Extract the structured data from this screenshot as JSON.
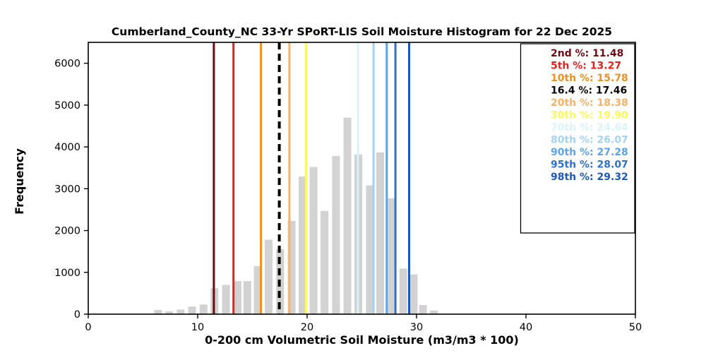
{
  "chart_data": {
    "type": "bar",
    "title": "Cumberland_County_NC 33-Yr SPoRT-LIS Soil Moisture Histogram for 22 Dec 2025",
    "xlabel": "0-200 cm Volumetric Soil Moisture (m3/m3 * 100)",
    "ylabel": "Frequency",
    "xlim": [
      0,
      50
    ],
    "ylim": [
      0,
      6500
    ],
    "xticks": [
      0,
      10,
      20,
      30,
      40,
      50
    ],
    "yticks": [
      0,
      1000,
      2000,
      3000,
      4000,
      5000,
      6000
    ],
    "grid": false,
    "bar_color": "#d2d2d2",
    "bin_width": 1.0,
    "bins": [
      {
        "x": 6.0,
        "freq": 100
      },
      {
        "x": 7.0,
        "freq": 70
      },
      {
        "x": 8.05,
        "freq": 110
      },
      {
        "x": 9.1,
        "freq": 180
      },
      {
        "x": 10.15,
        "freq": 230
      },
      {
        "x": 11.15,
        "freq": 620
      },
      {
        "x": 12.2,
        "freq": 700
      },
      {
        "x": 13.25,
        "freq": 790
      },
      {
        "x": 14.15,
        "freq": 790
      },
      {
        "x": 15.1,
        "freq": 1150
      },
      {
        "x": 16.1,
        "freq": 1780
      },
      {
        "x": 17.15,
        "freq": 1560
      },
      {
        "x": 18.2,
        "freq": 2230
      },
      {
        "x": 19.2,
        "freq": 3290
      },
      {
        "x": 20.2,
        "freq": 3520
      },
      {
        "x": 21.2,
        "freq": 2470
      },
      {
        "x": 22.25,
        "freq": 3780
      },
      {
        "x": 23.3,
        "freq": 4700
      },
      {
        "x": 24.3,
        "freq": 3820
      },
      {
        "x": 25.35,
        "freq": 3080
      },
      {
        "x": 26.3,
        "freq": 3870
      },
      {
        "x": 27.35,
        "freq": 2770
      },
      {
        "x": 28.4,
        "freq": 1090
      },
      {
        "x": 29.35,
        "freq": 950
      },
      {
        "x": 30.2,
        "freq": 220
      },
      {
        "x": 31.2,
        "freq": 90
      }
    ],
    "percentiles": [
      {
        "text": "2nd %: 11.48",
        "value": 11.48,
        "color": "#6e0a12",
        "dashed": false
      },
      {
        "text": "5th %: 13.27",
        "value": 13.27,
        "color": "#e8211d",
        "dashed": false
      },
      {
        "text": "10th %: 15.78",
        "value": 15.78,
        "color": "#f0901f",
        "dashed": false
      },
      {
        "text": "16.4 %: 17.46",
        "value": 17.46,
        "color": "#000000",
        "dashed": true
      },
      {
        "text": "20th %: 18.38",
        "value": 18.38,
        "color": "#f7b269",
        "dashed": false
      },
      {
        "text": "30th %: 19.90",
        "value": 19.9,
        "color": "#fcf75c",
        "dashed": false
      },
      {
        "text": "70th %: 24.64",
        "value": 24.64,
        "color": "#d8f4f8",
        "dashed": false
      },
      {
        "text": "80th %: 26.07",
        "value": 26.07,
        "color": "#a3d3f2",
        "dashed": false
      },
      {
        "text": "90th %: 27.28",
        "value": 27.28,
        "color": "#5da3e8",
        "dashed": false
      },
      {
        "text": "95th %: 28.07",
        "value": 28.07,
        "color": "#2e72cc",
        "dashed": false
      },
      {
        "text": "98th %: 29.32",
        "value": 29.32,
        "color": "#1c58be",
        "dashed": false
      }
    ],
    "legend_position": "upper right"
  }
}
